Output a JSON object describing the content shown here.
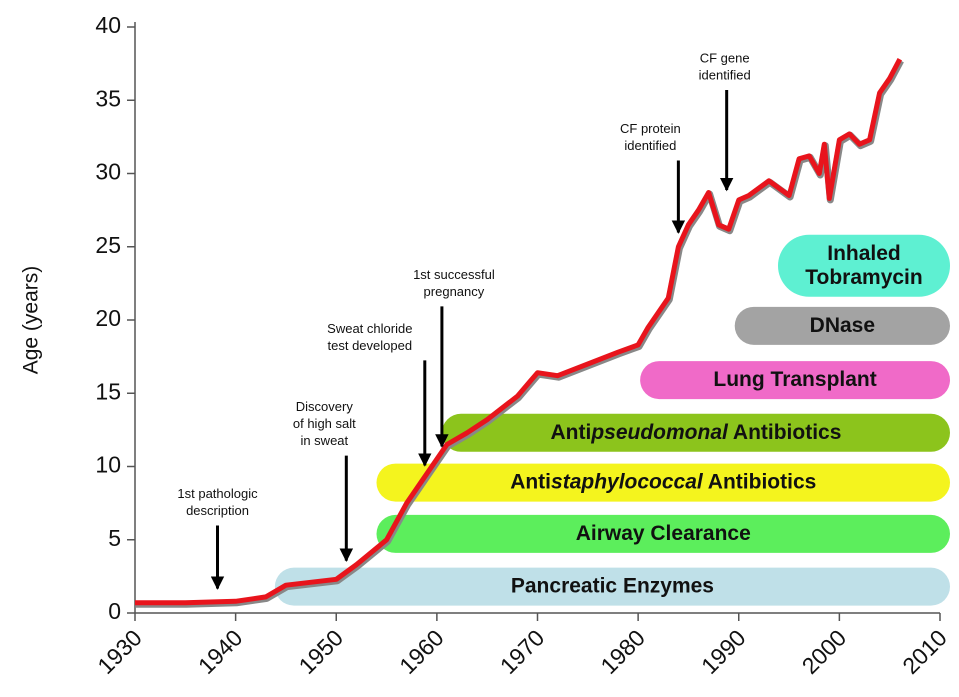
{
  "chart_data": {
    "type": "line",
    "y_label": "Age (years)",
    "xlim": [
      1930,
      2010
    ],
    "xticks": [
      1930,
      1940,
      1950,
      1960,
      1970,
      1980,
      1990,
      2000,
      2010
    ],
    "ylim": [
      0,
      40
    ],
    "yticks": [
      0,
      5,
      10,
      15,
      20,
      25,
      30,
      35,
      40
    ],
    "series": [
      {
        "color": "#e8141c",
        "x": [
          1930,
          1935,
          1940,
          1943,
          1945,
          1950,
          1952,
          1955,
          1957,
          1959,
          1961,
          1963,
          1965,
          1968,
          1970,
          1972,
          1975,
          1978,
          1980,
          1981,
          1983,
          1984,
          1985,
          1986,
          1987,
          1988,
          1989,
          1990,
          1991,
          1993,
          1995,
          1996,
          1997,
          1998,
          1998.5,
          1999,
          2000,
          2001,
          2002,
          2003,
          2004,
          2005,
          2006
        ],
        "values": [
          0.7,
          0.7,
          0.8,
          1.1,
          1.9,
          2.3,
          3.3,
          5,
          7.5,
          9.5,
          11.5,
          12.3,
          13.2,
          14.8,
          16.4,
          16.2,
          17,
          17.8,
          18.3,
          19.5,
          21.5,
          25,
          26.5,
          27.5,
          28.7,
          26.5,
          26.2,
          28.2,
          28.5,
          29.5,
          28.5,
          31,
          31.2,
          30,
          32,
          28.3,
          32.3,
          32.7,
          32,
          32.3,
          35.5,
          36.5,
          37.8
        ]
      }
    ],
    "annotations": [
      {
        "text": [
          "1st pathologic",
          "description"
        ],
        "x": 1938.2,
        "y": 1.4
      },
      {
        "text": [
          "Discovery",
          "of high salt",
          "in sweat"
        ],
        "x": 1951,
        "y": 3.3
      },
      {
        "text": [
          "Sweat chloride",
          "test developed"
        ],
        "x": 1958.8,
        "y": 9.8
      },
      {
        "text": [
          "1st successful",
          "pregnancy"
        ],
        "x": 1960.5,
        "y": 11.1
      },
      {
        "text": [
          "CF protein",
          "identified"
        ],
        "x": 1984,
        "y": 25.7
      },
      {
        "text": [
          "CF gene",
          "identified"
        ],
        "x": 1988.8,
        "y": 28.6
      }
    ],
    "bands": [
      {
        "label": [
          [
            {
              "text": "Pancreatic Enzymes"
            }
          ]
        ],
        "start": 1943.9,
        "end": 2010,
        "y": 1.8,
        "color": "#bfe0e8"
      },
      {
        "label": [
          [
            {
              "text": "Airway Clearance"
            }
          ]
        ],
        "start": 1954,
        "end": 2010,
        "y": 5.4,
        "color": "#5cee5c"
      },
      {
        "label": [
          [
            {
              "text": "Anti"
            },
            {
              "text": "staphylococcal",
              "italic": true
            },
            {
              "text": " Antibiotics"
            }
          ]
        ],
        "start": 1954,
        "end": 2010,
        "y": 8.9,
        "color": "#f4f41e"
      },
      {
        "label": [
          [
            {
              "text": "Anti"
            },
            {
              "text": "pseudomonal",
              "italic": true
            },
            {
              "text": " Antibiotics"
            }
          ]
        ],
        "start": 1960.5,
        "end": 2010,
        "y": 12.3,
        "color": "#8cc41c"
      },
      {
        "label": [
          [
            {
              "text": "Lung Transplant"
            }
          ]
        ],
        "start": 1980.2,
        "end": 2010,
        "y": 15.9,
        "color": "#f06ac8"
      },
      {
        "label": [
          [
            {
              "text": "DNase"
            }
          ]
        ],
        "start": 1989.6,
        "end": 2010,
        "y": 19.6,
        "color": "#a3a3a3"
      },
      {
        "label": [
          [
            {
              "text": "Inhaled"
            }
          ],
          [
            {
              "text": "Tobramycin"
            }
          ]
        ],
        "start": 1993.9,
        "end": 2010,
        "y": 23.7,
        "color": "#5ef0d2"
      }
    ]
  }
}
